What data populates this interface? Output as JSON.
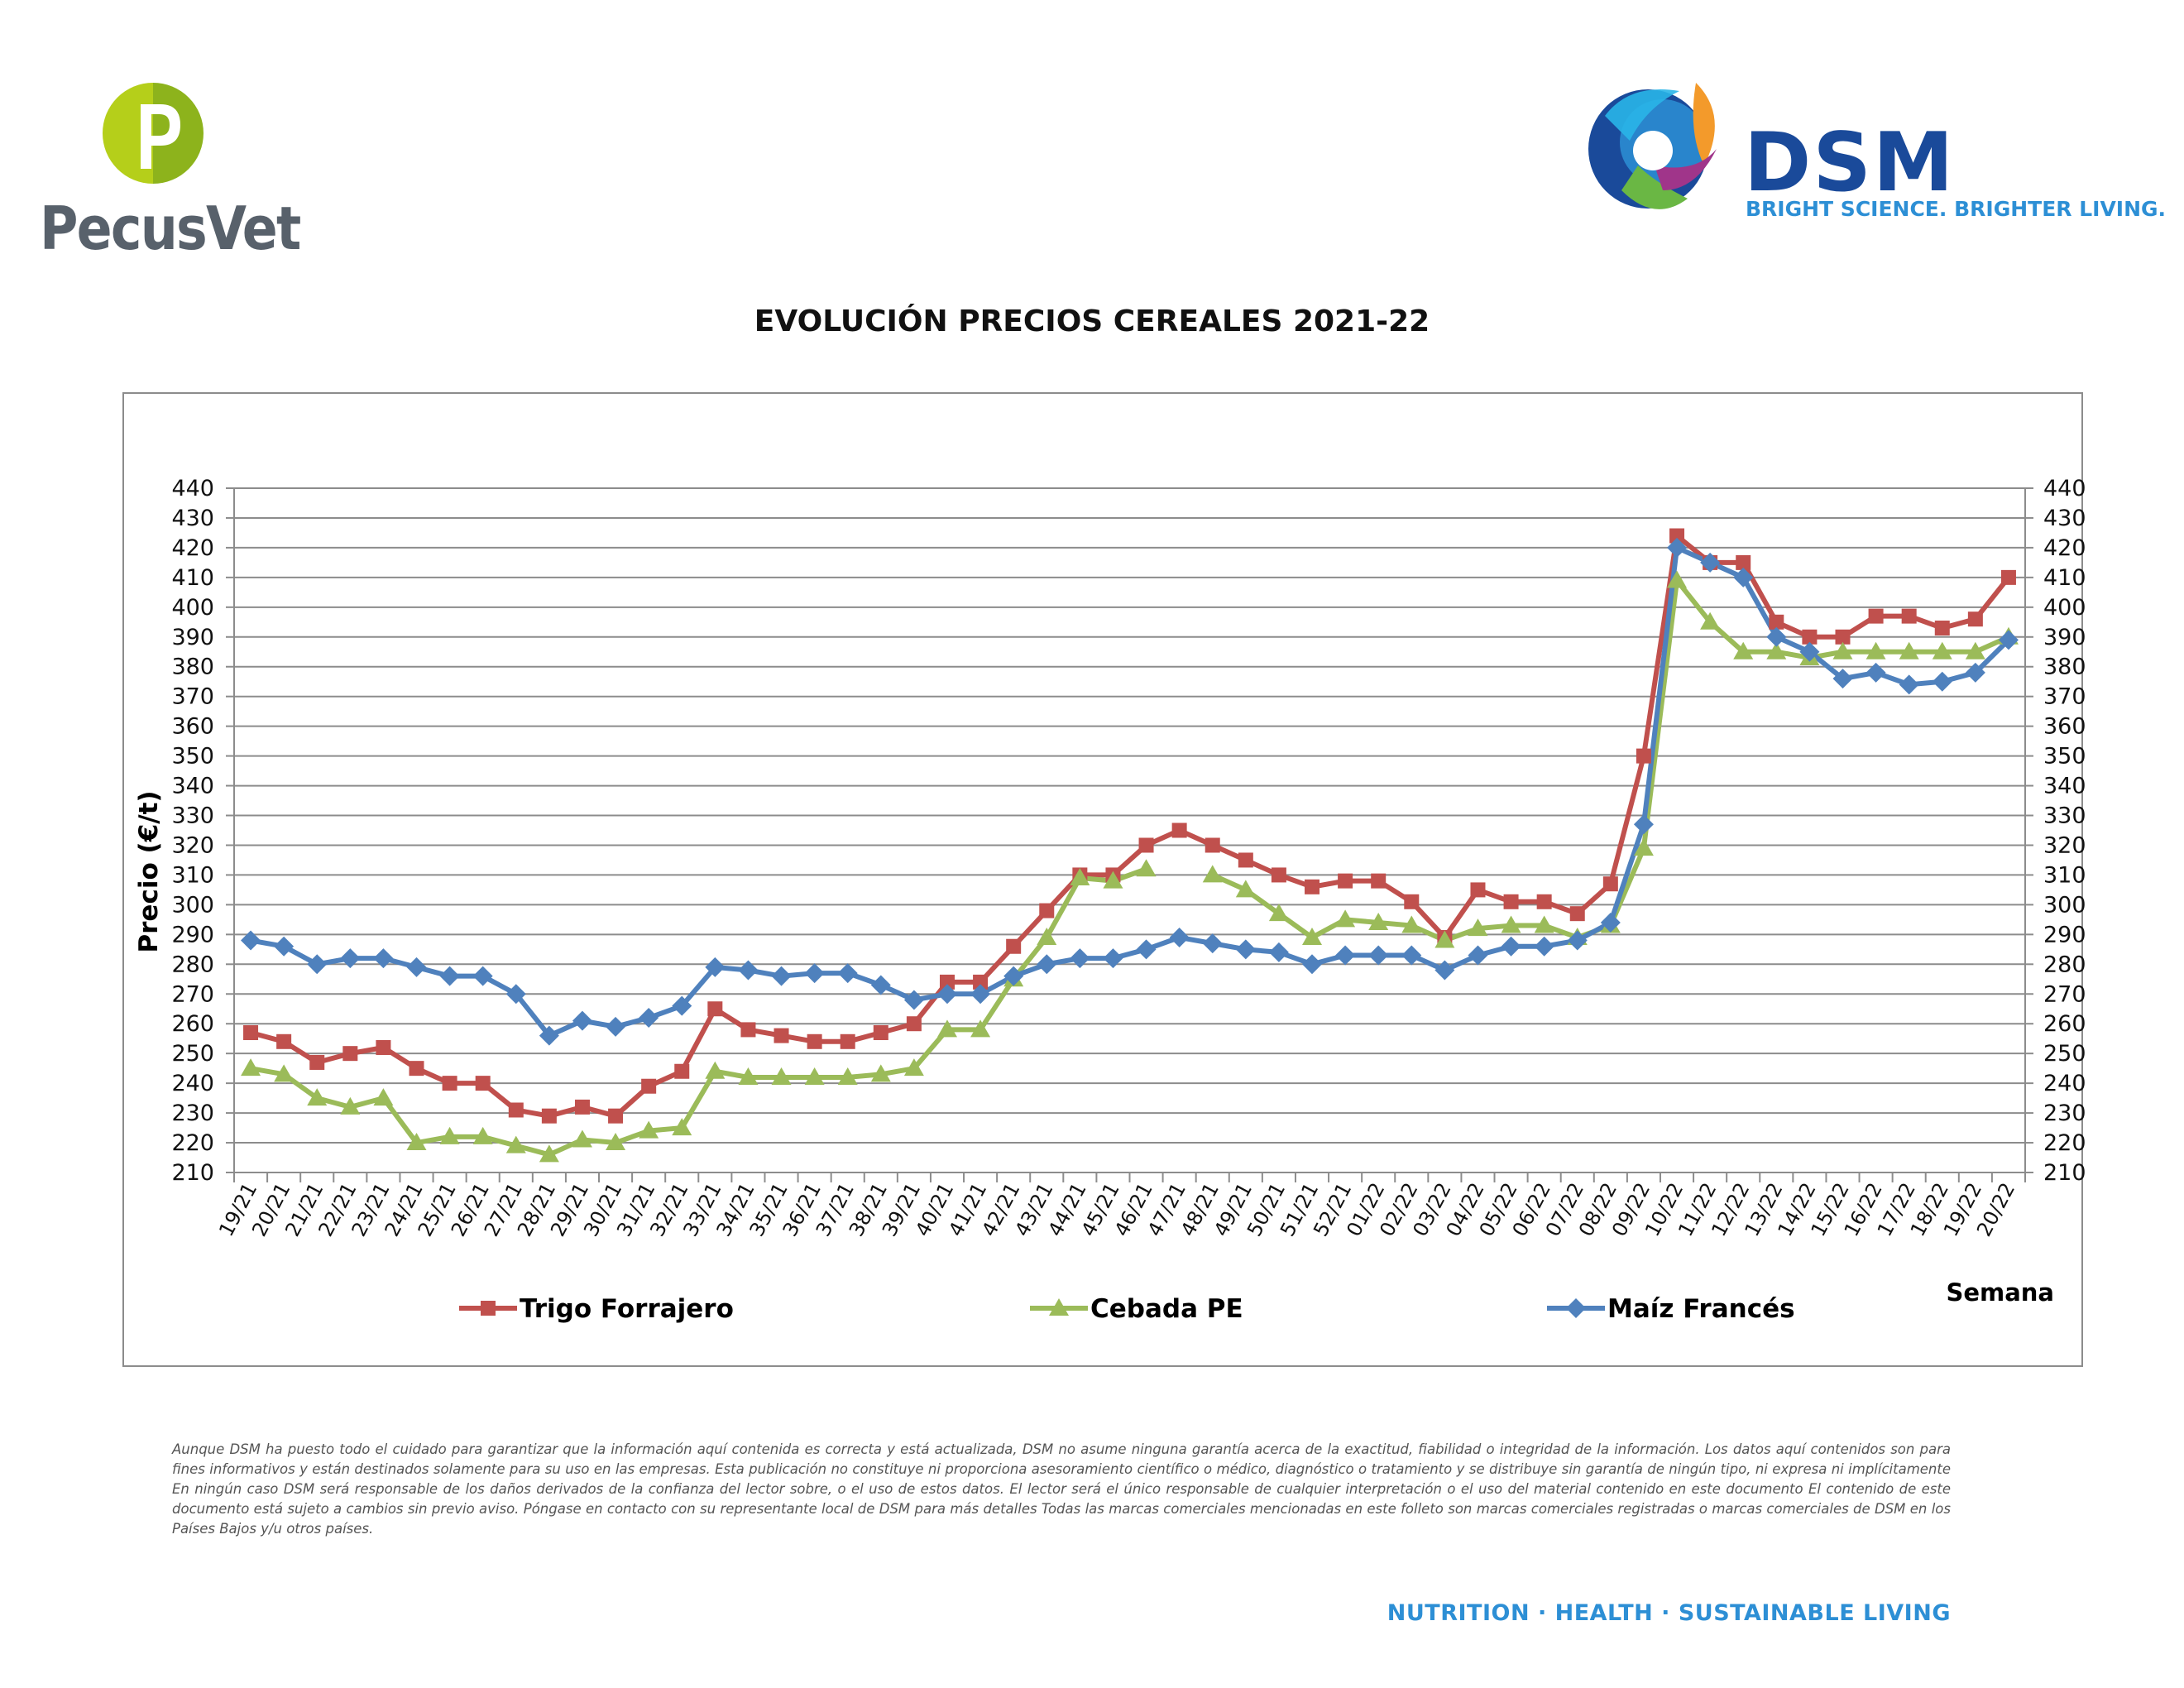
{
  "logos": {
    "pecusvet": "PecusVet",
    "dsm_name": "DSM",
    "dsm_tagline": "BRIGHT SCIENCE. BRIGHTER LIVING."
  },
  "chart_data": {
    "type": "line",
    "title": "EVOLUCIÓN PRECIOS CEREALES 2021-22",
    "ylabel": "Precio (€/t)",
    "xlabel": "Semana",
    "ylim": [
      210,
      440
    ],
    "ytick_step": 10,
    "grid": true,
    "legend_position": "bottom",
    "categories": [
      "19/21",
      "20/21",
      "21/21",
      "22/21",
      "23/21",
      "24/21",
      "25/21",
      "26/21",
      "27/21",
      "28/21",
      "29/21",
      "30/21",
      "31/21",
      "32/21",
      "33/21",
      "34/21",
      "35/21",
      "36/21",
      "37/21",
      "38/21",
      "39/21",
      "40/21",
      "41/21",
      "42/21",
      "43/21",
      "44/21",
      "45/21",
      "46/21",
      "47/21",
      "48/21",
      "49/21",
      "50/21",
      "51/21",
      "52/21",
      "01/22",
      "02/22",
      "03/22",
      "04/22",
      "05/22",
      "06/22",
      "07/22",
      "08/22",
      "09/22",
      "10/22",
      "11/22",
      "12/22",
      "13/22",
      "14/22",
      "15/22",
      "16/22",
      "17/22",
      "18/22",
      "19/22",
      "20/22"
    ],
    "series": [
      {
        "name": "Trigo Forrajero",
        "color": "#c0504d",
        "marker": "square",
        "values": [
          257,
          254,
          247,
          250,
          252,
          245,
          240,
          240,
          231,
          229,
          232,
          229,
          239,
          244,
          265,
          258,
          256,
          254,
          254,
          257,
          260,
          274,
          274,
          286,
          298,
          310,
          310,
          320,
          325,
          320,
          315,
          310,
          306,
          308,
          308,
          301,
          289,
          305,
          301,
          301,
          297,
          307,
          350,
          424,
          415,
          415,
          395,
          390,
          390,
          397,
          397,
          393,
          396,
          410
        ]
      },
      {
        "name": "Cebada PE",
        "color": "#9bbb59",
        "marker": "triangle",
        "values": [
          245,
          243,
          235,
          232,
          235,
          220,
          222,
          222,
          219,
          216,
          221,
          220,
          224,
          225,
          244,
          242,
          242,
          242,
          242,
          243,
          245,
          258,
          258,
          275,
          289,
          309,
          308,
          312,
          null,
          310,
          305,
          297,
          289,
          295,
          294,
          293,
          288,
          292,
          293,
          293,
          289,
          293,
          319,
          409,
          395,
          385,
          385,
          383,
          385,
          385,
          385,
          385,
          385,
          390
        ]
      },
      {
        "name": "Maíz Francés",
        "color": "#4f81bd",
        "marker": "diamond",
        "values": [
          288,
          286,
          280,
          282,
          282,
          279,
          276,
          276,
          270,
          256,
          261,
          259,
          262,
          266,
          279,
          278,
          276,
          277,
          277,
          273,
          268,
          270,
          270,
          276,
          280,
          282,
          282,
          285,
          289,
          287,
          285,
          284,
          280,
          283,
          283,
          283,
          278,
          283,
          286,
          286,
          288,
          294,
          327,
          420,
          415,
          410,
          390,
          385,
          376,
          378,
          374,
          375,
          378,
          389
        ]
      }
    ]
  },
  "disclaimer": "Aunque DSM ha puesto todo el cuidado para garantizar que la información aquí contenida es correcta y está actualizada, DSM no asume ninguna garantía acerca de la exactitud, fiabilidad o integridad de la información. Los datos aquí contenidos son para fines informativos y están destinados solamente para su uso en las empresas. Esta publicación no constituye ni proporciona asesoramiento científico o médico, diagnóstico o tratamiento y se distribuye sin garantía de ningún tipo, ni expresa ni implícitamente En ningún caso DSM será responsable de los daños derivados de la confianza del lector sobre, o el uso de estos datos. El lector será el único responsable de cualquier interpretación o el uso del material contenido en este documento El contenido de este documento está sujeto a cambios sin previo aviso. Póngase en contacto con su representante local de DSM para más detalles Todas las marcas comerciales mencionadas en este folleto son marcas comerciales registradas o marcas comerciales de DSM en los Países Bajos y/u otros países.",
  "footer": "NUTRITION · HEALTH · SUSTAINABLE LIVING"
}
